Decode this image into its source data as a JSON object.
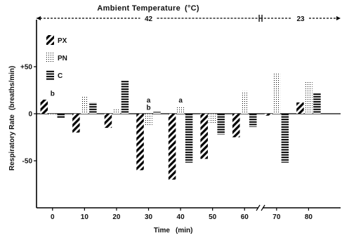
{
  "chart_data": {
    "type": "bar",
    "title": "Ambient Temperature",
    "title_unit": "(°C)",
    "temperature_segments": [
      {
        "label": "42",
        "x_from": -5,
        "x_to": 65
      },
      {
        "label": "23",
        "x_from": 65,
        "x_to": 90
      }
    ],
    "xlabel": "Time",
    "xlabel_unit": "(min)",
    "ylabel": "Respiratory Rate",
    "ylabel_unit": "(breaths/min)",
    "xlim": [
      -5,
      90
    ],
    "ylim": [
      -100,
      100
    ],
    "x_ticks": [
      {
        "value": 0,
        "label": "0"
      },
      {
        "value": 10,
        "label": "10"
      },
      {
        "value": 20,
        "label": "20"
      },
      {
        "value": 30,
        "label": "30"
      },
      {
        "value": 40,
        "label": "40"
      },
      {
        "value": 50,
        "label": "50"
      },
      {
        "value": 60,
        "label": "60"
      },
      {
        "value": 70,
        "label": "70"
      },
      {
        "value": 80,
        "label": "80"
      }
    ],
    "y_ticks": [
      {
        "value": 50,
        "label": "+50"
      },
      {
        "value": 0,
        "label": "0"
      },
      {
        "value": -50,
        "label": "-50"
      }
    ],
    "x_axis_break_at": 65,
    "series": [
      {
        "name": "PX",
        "pattern": "diagonal-stripes",
        "values": [
          15,
          -20,
          -15,
          -60,
          -70,
          -48,
          -25,
          -2,
          12
        ]
      },
      {
        "name": "PN",
        "pattern": "dots",
        "values": [
          -2,
          18,
          5,
          -12,
          8,
          -10,
          24,
          44,
          35
        ]
      },
      {
        "name": "C",
        "pattern": "horizontal-stripes",
        "values": [
          -5,
          12,
          35,
          2,
          -52,
          -22,
          -14,
          -52,
          22
        ]
      }
    ],
    "categories": [
      0,
      10,
      20,
      30,
      40,
      50,
      60,
      70,
      80
    ],
    "annotations": [
      {
        "text": "b",
        "x": 0,
        "y": 19
      },
      {
        "text": "a",
        "x": 30,
        "y": 12
      },
      {
        "text": "b",
        "x": 30,
        "y": 4
      },
      {
        "text": "a",
        "x": 40,
        "y": 12
      }
    ]
  }
}
